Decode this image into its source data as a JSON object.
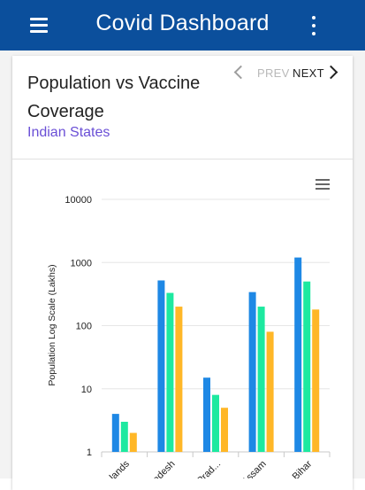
{
  "appbar": {
    "title": "Covid Dashboard",
    "menu_icon": "hamburger-menu-icon",
    "more_icon": "more-vert-icon",
    "background": "#0b4f9c"
  },
  "card": {
    "title": "Population vs Vaccine Coverage",
    "subtitle": "Indian States",
    "pager": {
      "prev_label": "PREV",
      "next_label": "NEXT"
    }
  },
  "chart_data": {
    "type": "bar",
    "title": "",
    "ylabel": "Population Log Scale (Lakhs)",
    "xlabel": "",
    "yscale": "log",
    "ylim": [
      1,
      10000
    ],
    "yticks": [
      "1",
      "10",
      "100",
      "1000",
      "10000"
    ],
    "categories": [
      "...lands",
      "...adesh",
      "...Prad...",
      "Assam",
      "Bihar"
    ],
    "series": [
      {
        "values": [
          4,
          520,
          15,
          340,
          1200
        ],
        "color": "#1e88e5"
      },
      {
        "values": [
          3,
          330,
          8,
          200,
          500
        ],
        "color": "#1de9a0"
      },
      {
        "values": [
          2,
          200,
          5,
          80,
          180
        ],
        "color": "#ffb727"
      }
    ],
    "grid": true
  }
}
